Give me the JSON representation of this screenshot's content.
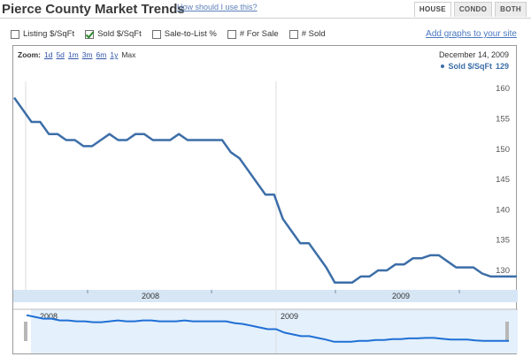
{
  "header": {
    "title": "Pierce County Market Trends",
    "help_link": "How should I use this?"
  },
  "tabs": [
    {
      "label": "HOUSE",
      "active": true
    },
    {
      "label": "CONDO",
      "active": false
    },
    {
      "label": "BOTH",
      "active": false
    }
  ],
  "checkboxes": [
    {
      "label": "Listing $/SqFt",
      "checked": false
    },
    {
      "label": "Sold $/SqFt",
      "checked": true
    },
    {
      "label": "Sale-to-List %",
      "checked": false
    },
    {
      "label": "# For Sale",
      "checked": false
    },
    {
      "label": "# Sold",
      "checked": false
    }
  ],
  "add_graphs_link": "Add graphs to your site",
  "zoom": {
    "label": "Zoom:",
    "options": [
      "1d",
      "5d",
      "1m",
      "3m",
      "6m",
      "1y",
      "Max"
    ],
    "selected": "Max"
  },
  "date_label": "December 14, 2009",
  "legend": {
    "series": "Sold $/SqFt",
    "value": "129"
  },
  "colors": {
    "line": "#3c6ea8",
    "nav_fill": "#e4f0fb",
    "axis_band": "#d6e6f5"
  },
  "chart_data": {
    "type": "line",
    "y_ticks": [
      130,
      135,
      140,
      145,
      150,
      155,
      160
    ],
    "ylim": [
      126.8,
      161.2
    ],
    "x_tick_labels": [
      "2008",
      "2009"
    ],
    "nav_labels": [
      "2008",
      "2009"
    ],
    "series": [
      {
        "name": "Sold $/SqFt",
        "values": [
          158.5,
          156.5,
          154.5,
          154.5,
          152.5,
          152.5,
          151.5,
          151.5,
          150.5,
          150.5,
          151.5,
          152.5,
          151.5,
          151.5,
          152.5,
          152.5,
          151.5,
          151.5,
          151.5,
          152.5,
          151.5,
          151.5,
          151.5,
          151.5,
          151.5,
          149.5,
          148.5,
          146.5,
          144.5,
          142.5,
          142.5,
          138.5,
          136.5,
          134.5,
          134.5,
          132.5,
          130.5,
          128.0,
          128.0,
          128.0,
          129.0,
          129.0,
          130.0,
          130.0,
          131.0,
          131.0,
          132.0,
          132.0,
          132.5,
          132.5,
          131.5,
          130.5,
          130.5,
          130.5,
          129.5,
          129.0,
          129.0,
          129.0,
          129.0
        ]
      }
    ]
  }
}
